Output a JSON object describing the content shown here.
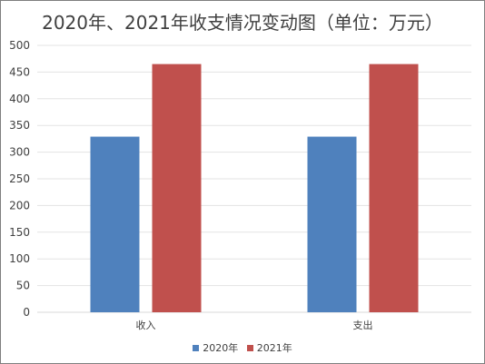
{
  "chart_data": {
    "type": "bar",
    "title": "2020年、2021年收支情况变动图（单位：万元）",
    "categories": [
      "收入",
      "支出"
    ],
    "series": [
      {
        "name": "2020年",
        "color": "#4f81bd",
        "values": [
          329,
          329
        ]
      },
      {
        "name": "2021年",
        "color": "#c0504d",
        "values": [
          465,
          465
        ]
      }
    ],
    "ylim": [
      0,
      500
    ],
    "yticks": [
      "0",
      "50",
      "100",
      "150",
      "200",
      "250",
      "300",
      "350",
      "400",
      "450",
      "500"
    ],
    "grid": true,
    "legend": "bottom"
  }
}
